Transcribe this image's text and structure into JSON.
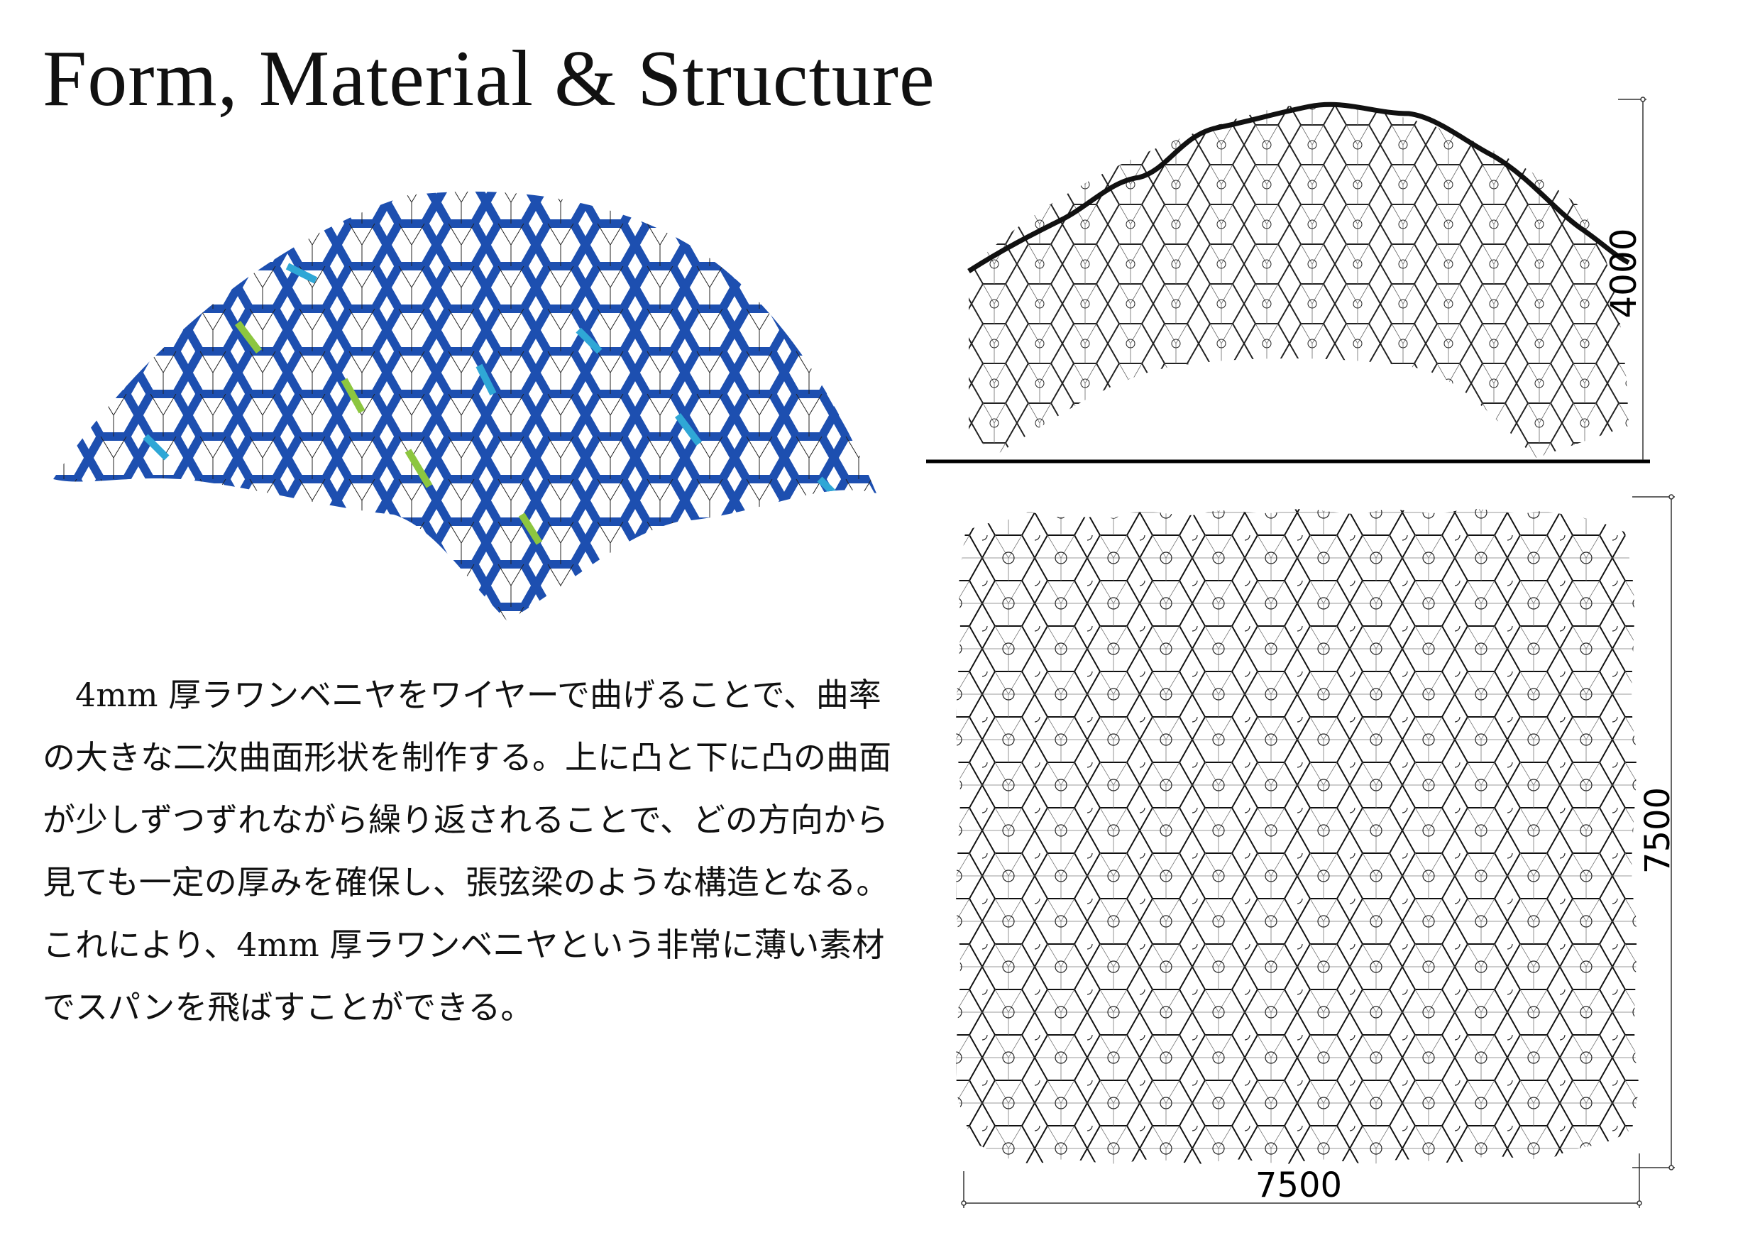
{
  "title": "Form, Material & Structure",
  "body_text": "4mm 厚ラワンベニヤをワイヤーで曲げることで、曲率の大きな二次曲面形状を制作する。上に凸と下に凸の曲面が少しずつずれながら繰り返されることで、どの方向から見ても一定の厚みを確保し、張弦梁のような構造となる。これにより、4mm 厚ラワンベニヤという非常に薄い素材でスパンを飛ばすことができる。",
  "elevation": {
    "height_label": "4000"
  },
  "plan": {
    "width_label": "7500",
    "height_label": "7500"
  },
  "colors": {
    "background": "#ffffff",
    "line": "#111111",
    "stress_low": "#1d4fb0",
    "stress_mid": "#2fa7d6",
    "stress_high": "#8cc63f"
  }
}
